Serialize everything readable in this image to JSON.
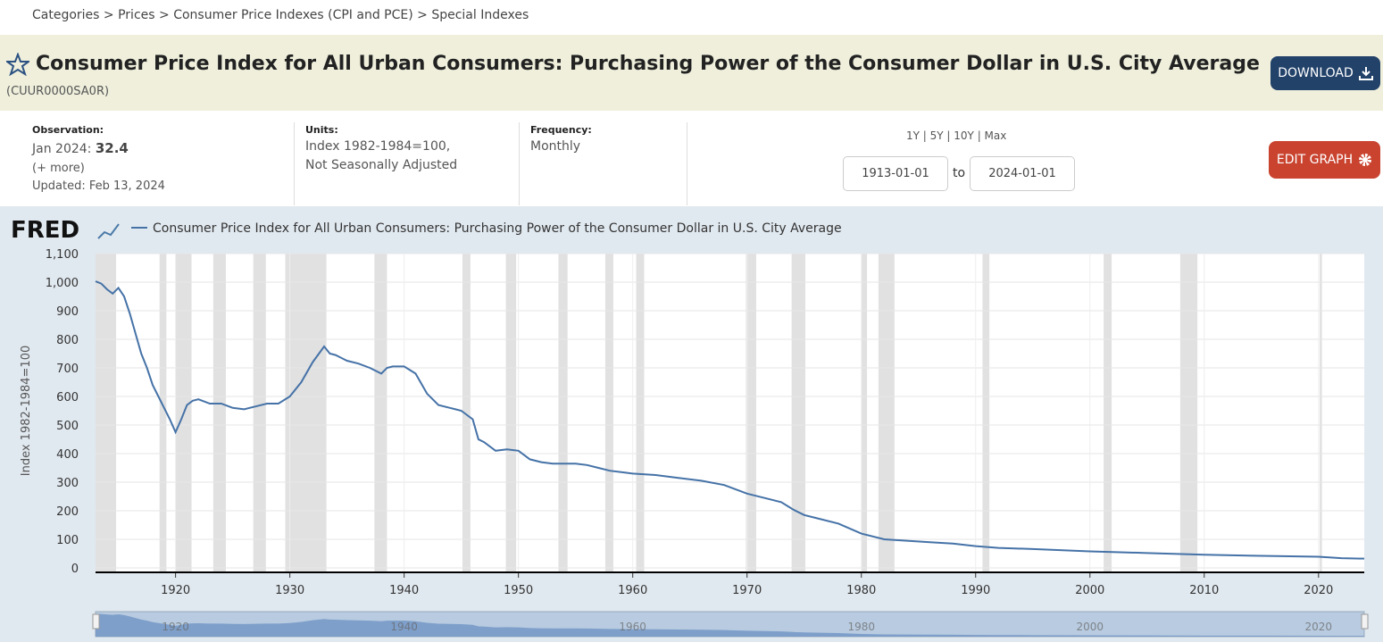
{
  "breadcrumb": [
    "Categories",
    "Prices",
    "Consumer Price Indexes (CPI and PCE)",
    "Special Indexes"
  ],
  "header": {
    "title": "Consumer Price Index for All Urban Consumers: Purchasing Power of the Consumer Dollar in U.S. City Average",
    "series_id": "(CUUR0000SA0R)",
    "download": "DOWNLOAD"
  },
  "info": {
    "observation_label": "Observation:",
    "observation_date": "Jan 2024:",
    "observation_value": "32.4",
    "more": "(+ more)",
    "updated": "Updated: Feb 13, 2024",
    "units_label": "Units:",
    "units": [
      "Index 1982-1984=100,",
      "Not Seasonally Adjusted"
    ],
    "frequency_label": "Frequency:",
    "frequency": "Monthly",
    "ranges": "1Y | 5Y | 10Y | Max",
    "start_date": "1913-01-01",
    "to": "to",
    "end_date": "2024-01-01",
    "edit_graph": "EDIT GRAPH"
  },
  "logo": "FRED",
  "chart_data": {
    "type": "line",
    "y_label": "Index 1982-1984=100",
    "x": [
      1913,
      1913.5,
      1914,
      1914.5,
      1915,
      1915.5,
      1916,
      1916.5,
      1917,
      1917.5,
      1918,
      1918.5,
      1919,
      1919.5,
      1920,
      1920.5,
      1921,
      1921.5,
      1922,
      1923,
      1924,
      1925,
      1926,
      1927,
      1928,
      1929,
      1930,
      1931,
      1932,
      1933,
      1933.5,
      1934,
      1935,
      1936,
      1937,
      1938,
      1938.5,
      1939,
      1940,
      1941,
      1942,
      1943,
      1944,
      1945,
      1946,
      1946.5,
      1947,
      1948,
      1949,
      1950,
      1951,
      1952,
      1953,
      1954,
      1955,
      1956,
      1957,
      1958,
      1959,
      1960,
      1962,
      1964,
      1966,
      1968,
      1970,
      1972,
      1973,
      1974,
      1975,
      1976,
      1978,
      1980,
      1982,
      1984,
      1986,
      1988,
      1990,
      1992,
      1995,
      2000,
      2005,
      2010,
      2015,
      2020,
      2022,
      2024
    ],
    "series": [
      {
        "name": "Consumer Price Index for All Urban Consumers: Purchasing Power of the Consumer Dollar in U.S. City Average",
        "color": "#4572a7",
        "values": [
          1003,
          995,
          975,
          960,
          980,
          950,
          890,
          820,
          750,
          700,
          640,
          600,
          560,
          520,
          475,
          520,
          570,
          585,
          590,
          575,
          575,
          560,
          555,
          565,
          575,
          575,
          600,
          650,
          720,
          775,
          750,
          745,
          725,
          715,
          700,
          680,
          700,
          705,
          705,
          680,
          610,
          570,
          560,
          550,
          520,
          450,
          440,
          410,
          415,
          410,
          380,
          370,
          365,
          365,
          365,
          360,
          350,
          340,
          335,
          330,
          325,
          315,
          305,
          290,
          260,
          240,
          230,
          205,
          185,
          175,
          155,
          120,
          100,
          95,
          90,
          85,
          76,
          70,
          66,
          58,
          52,
          46,
          42,
          39,
          34,
          32.4
        ]
      }
    ],
    "recessions": [
      [
        1913.0,
        1914.8
      ],
      [
        1918.6,
        1919.2
      ],
      [
        1920.0,
        1921.4
      ],
      [
        1923.3,
        1924.4
      ],
      [
        1926.8,
        1927.9
      ],
      [
        1929.6,
        1933.2
      ],
      [
        1937.4,
        1938.5
      ],
      [
        1945.1,
        1945.8
      ],
      [
        1948.9,
        1949.8
      ],
      [
        1953.5,
        1954.3
      ],
      [
        1957.6,
        1958.3
      ],
      [
        1960.3,
        1961.0
      ],
      [
        1969.9,
        1970.8
      ],
      [
        1973.9,
        1975.1
      ],
      [
        1980.0,
        1980.5
      ],
      [
        1981.5,
        1982.9
      ],
      [
        1990.6,
        1991.2
      ],
      [
        2001.2,
        2001.9
      ],
      [
        2007.9,
        2009.4
      ],
      [
        2020.1,
        2020.3
      ]
    ],
    "xlim": [
      1913,
      2024
    ],
    "xticks": [
      1920,
      1930,
      1940,
      1950,
      1960,
      1970,
      1980,
      1990,
      2000,
      2010,
      2020
    ],
    "ylim": [
      0,
      1100
    ],
    "yticks": [
      0,
      100,
      200,
      300,
      400,
      500,
      600,
      700,
      800,
      900,
      {
        "value": 1000,
        "label": "1,000"
      },
      {
        "value": 1100,
        "label": "1,100"
      }
    ],
    "grid": true
  }
}
